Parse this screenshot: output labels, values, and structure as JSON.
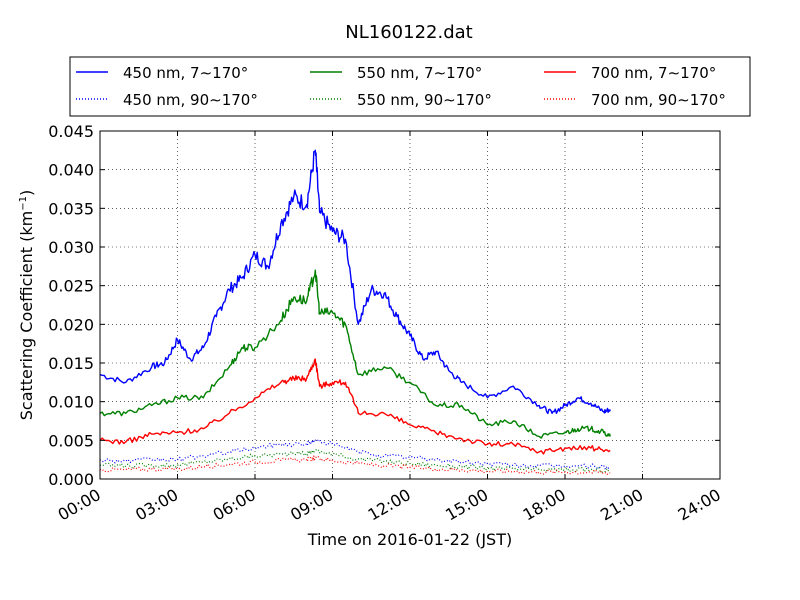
{
  "chart_data": {
    "type": "line",
    "title": "NL160122.dat",
    "xlabel": "Time on 2016-01-22 (JST)",
    "ylabel_main": "Scattering Coefficient (km",
    "ylabel_sup": "−1",
    "ylabel_end": ")",
    "xlim_hours": [
      0,
      24
    ],
    "ylim": [
      0,
      0.045
    ],
    "grid": true,
    "legend_position": "top, outside plot, 3 columns",
    "x_ticks": [
      "00:00",
      "03:00",
      "06:00",
      "09:00",
      "12:00",
      "15:00",
      "18:00",
      "21:00",
      "24:00"
    ],
    "x_tick_hours": [
      0,
      3,
      6,
      9,
      12,
      15,
      18,
      21,
      24
    ],
    "y_ticks": [
      "0.000",
      "0.005",
      "0.010",
      "0.015",
      "0.020",
      "0.025",
      "0.030",
      "0.035",
      "0.040",
      "0.045"
    ],
    "y_tick_values": [
      0,
      0.005,
      0.01,
      0.015,
      0.02,
      0.025,
      0.03,
      0.035,
      0.04,
      0.045
    ],
    "series": [
      {
        "name": "450 nm, 7∼170°",
        "color": "#0000ff",
        "style": "solid",
        "x": [
          "00:00",
          "01:00",
          "02:00",
          "02:30",
          "03:00",
          "03:30",
          "04:00",
          "04:30",
          "05:00",
          "05:30",
          "06:00",
          "06:30",
          "07:00",
          "07:30",
          "08:00",
          "08:20",
          "08:30",
          "09:00",
          "09:30",
          "10:00",
          "10:30",
          "11:00",
          "11:30",
          "12:00",
          "12:30",
          "13:00",
          "13:30",
          "14:00",
          "15:00",
          "16:00",
          "17:00",
          "17:30",
          "18:00",
          "18:30",
          "19:00",
          "19:30",
          "19:45"
        ],
        "y": [
          0.0135,
          0.0125,
          0.0145,
          0.015,
          0.018,
          0.0155,
          0.017,
          0.021,
          0.0245,
          0.026,
          0.029,
          0.0275,
          0.033,
          0.0365,
          0.0355,
          0.0425,
          0.0345,
          0.032,
          0.031,
          0.02,
          0.0245,
          0.024,
          0.021,
          0.0185,
          0.0155,
          0.0165,
          0.014,
          0.0125,
          0.0105,
          0.012,
          0.0095,
          0.0085,
          0.0095,
          0.0105,
          0.0098,
          0.0087,
          0.009
        ]
      },
      {
        "name": "550 nm, 7∼170°",
        "color": "#008000",
        "style": "solid",
        "x": [
          "00:00",
          "01:00",
          "02:00",
          "03:00",
          "04:00",
          "05:00",
          "05:30",
          "06:00",
          "07:00",
          "07:30",
          "08:00",
          "08:20",
          "08:30",
          "09:00",
          "09:30",
          "10:00",
          "11:00",
          "12:00",
          "13:00",
          "14:00",
          "15:00",
          "16:00",
          "17:00",
          "18:00",
          "18:30",
          "19:00",
          "19:30",
          "19:45"
        ],
        "y": [
          0.0085,
          0.0085,
          0.0095,
          0.0105,
          0.0105,
          0.0145,
          0.017,
          0.017,
          0.0205,
          0.0235,
          0.023,
          0.027,
          0.0215,
          0.0215,
          0.02,
          0.0135,
          0.0145,
          0.0125,
          0.0095,
          0.0095,
          0.007,
          0.0075,
          0.0055,
          0.006,
          0.0065,
          0.0065,
          0.006,
          0.0055
        ]
      },
      {
        "name": "700 nm, 7∼170°",
        "color": "#ff0000",
        "style": "solid",
        "x": [
          "00:00",
          "01:00",
          "02:00",
          "03:00",
          "04:00",
          "05:00",
          "06:00",
          "07:00",
          "07:30",
          "08:00",
          "08:20",
          "08:30",
          "09:00",
          "09:30",
          "10:00",
          "11:00",
          "12:00",
          "13:00",
          "14:00",
          "15:00",
          "16:00",
          "17:00",
          "18:00",
          "19:00",
          "19:45"
        ],
        "y": [
          0.005,
          0.0048,
          0.0058,
          0.006,
          0.0065,
          0.0085,
          0.0105,
          0.0125,
          0.013,
          0.013,
          0.0155,
          0.012,
          0.0125,
          0.0125,
          0.0085,
          0.0085,
          0.007,
          0.006,
          0.0052,
          0.0045,
          0.0045,
          0.0035,
          0.004,
          0.004,
          0.0037
        ]
      },
      {
        "name": "450 nm, 90∼170°",
        "color": "#0000ff",
        "style": "dotted",
        "x": [
          "00:00",
          "01:00",
          "02:00",
          "03:00",
          "04:00",
          "05:00",
          "06:00",
          "07:00",
          "08:00",
          "08:20",
          "09:00",
          "10:00",
          "11:00",
          "12:00",
          "13:00",
          "14:00",
          "15:00",
          "16:00",
          "17:00",
          "18:00",
          "19:00",
          "19:45"
        ],
        "y": [
          0.0025,
          0.0023,
          0.0025,
          0.0025,
          0.003,
          0.0035,
          0.004,
          0.0045,
          0.0045,
          0.005,
          0.0045,
          0.0035,
          0.003,
          0.0028,
          0.0025,
          0.0022,
          0.002,
          0.0018,
          0.0017,
          0.0017,
          0.0017,
          0.0015
        ]
      },
      {
        "name": "550 nm, 90∼170°",
        "color": "#008000",
        "style": "dotted",
        "x": [
          "00:00",
          "01:00",
          "02:00",
          "03:00",
          "04:00",
          "05:00",
          "06:00",
          "07:00",
          "08:00",
          "08:20",
          "09:00",
          "10:00",
          "11:00",
          "12:00",
          "13:00",
          "14:00",
          "15:00",
          "16:00",
          "17:00",
          "18:00",
          "19:00",
          "19:45"
        ],
        "y": [
          0.0018,
          0.0017,
          0.0018,
          0.0018,
          0.0022,
          0.0026,
          0.003,
          0.0032,
          0.0033,
          0.0037,
          0.0032,
          0.0026,
          0.0023,
          0.002,
          0.0018,
          0.0016,
          0.0014,
          0.0013,
          0.0012,
          0.0012,
          0.0012,
          0.0011
        ]
      },
      {
        "name": "700 nm, 90∼170°",
        "color": "#ff0000",
        "style": "dotted",
        "x": [
          "00:00",
          "01:00",
          "02:00",
          "03:00",
          "04:00",
          "05:00",
          "06:00",
          "07:00",
          "08:00",
          "08:20",
          "09:00",
          "10:00",
          "11:00",
          "12:00",
          "13:00",
          "14:00",
          "15:00",
          "16:00",
          "17:00",
          "18:00",
          "19:00",
          "19:45"
        ],
        "y": [
          0.0012,
          0.0012,
          0.0013,
          0.0013,
          0.0016,
          0.0019,
          0.0022,
          0.0024,
          0.0025,
          0.0027,
          0.0024,
          0.002,
          0.0017,
          0.0015,
          0.0013,
          0.0012,
          0.001,
          0.001,
          0.0009,
          0.0009,
          0.0009,
          0.0008
        ]
      }
    ]
  }
}
